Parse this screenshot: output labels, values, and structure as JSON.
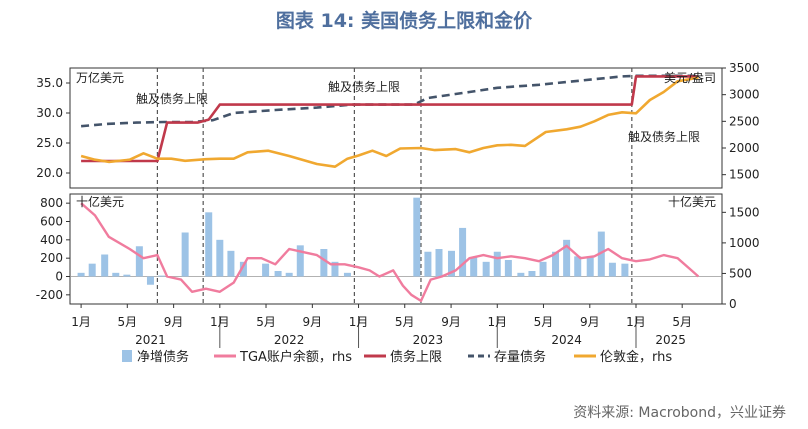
{
  "title": "图表 14: 美国债务上限和金价",
  "source": "资料来源: Macrobond，兴业证券",
  "colors": {
    "bar": "#9dc3e6",
    "tga": "#f07c9e",
    "ceiling": "#c0394b",
    "stock": "#44546a",
    "gold": "#f0a830",
    "grid": "#555555"
  },
  "chart_data": [
    {
      "type": "line",
      "panel": "top",
      "unit_left": "万亿美元",
      "unit_right": "美元/盎司",
      "ylim_left": [
        17.5,
        37.5
      ],
      "yticks_left": [
        "20.0",
        "25.0",
        "30.0",
        "35.0"
      ],
      "ylim_right": [
        1250,
        3500
      ],
      "yticks_right": [
        "1500",
        "2000",
        "2500",
        "3000",
        "3500"
      ],
      "annotations": [
        {
          "text": "触及债务上限",
          "x": 2021.2
        },
        {
          "text": "触及债务上限",
          "x": 2022.85
        },
        {
          "text": "触及债务上限",
          "x": 2024.97
        }
      ],
      "series": [
        {
          "name": "债务上限",
          "axis": "left",
          "x": [
            2021.0,
            2021.55,
            2021.62,
            2021.84,
            2021.92,
            2022.0,
            2024.97,
            2025.0,
            2025.45
          ],
          "y": [
            22.0,
            22.0,
            28.4,
            28.4,
            28.9,
            31.4,
            31.4,
            36.1,
            36.1
          ]
        },
        {
          "name": "存量债务",
          "axis": "left",
          "x": [
            2021.0,
            2021.2,
            2021.4,
            2021.6,
            2021.8,
            2021.95,
            2022.1,
            2022.4,
            2022.7,
            2022.95,
            2023.4,
            2023.5,
            2023.8,
            2024.0,
            2024.3,
            2024.6,
            2024.9,
            2025.0,
            2025.45
          ],
          "y": [
            27.8,
            28.2,
            28.4,
            28.5,
            28.5,
            28.8,
            30.0,
            30.5,
            30.9,
            31.4,
            31.4,
            32.5,
            33.5,
            34.2,
            34.7,
            35.4,
            36.1,
            36.2,
            36.2
          ]
        },
        {
          "name": "伦敦金，rhs",
          "axis": "right",
          "x": [
            2021.0,
            2021.1,
            2021.2,
            2021.35,
            2021.45,
            2021.55,
            2021.65,
            2021.75,
            2021.9,
            2022.0,
            2022.1,
            2022.2,
            2022.35,
            2022.5,
            2022.7,
            2022.83,
            2022.92,
            2023.0,
            2023.1,
            2023.2,
            2023.3,
            2023.45,
            2023.55,
            2023.7,
            2023.8,
            2023.9,
            2024.0,
            2024.1,
            2024.2,
            2024.35,
            2024.5,
            2024.6,
            2024.7,
            2024.8,
            2024.9,
            2025.0,
            2025.1,
            2025.2,
            2025.3,
            2025.45
          ],
          "y": [
            1850,
            1780,
            1740,
            1780,
            1900,
            1800,
            1800,
            1760,
            1790,
            1800,
            1800,
            1920,
            1950,
            1850,
            1700,
            1650,
            1800,
            1860,
            1950,
            1850,
            1990,
            2000,
            1960,
            1980,
            1920,
            2000,
            2050,
            2060,
            2040,
            2300,
            2350,
            2400,
            2500,
            2620,
            2670,
            2650,
            2900,
            3050,
            3250,
            3320
          ]
        }
      ]
    },
    {
      "type": "bar",
      "panel": "bottom",
      "unit_left": "十亿美元",
      "unit_right": "十亿美元",
      "ylim_left": [
        -300,
        900
      ],
      "yticks_left": [
        "-200",
        "0",
        "200",
        "400",
        "600",
        "800"
      ],
      "ylim_right": [
        0,
        1800
      ],
      "yticks_right": [
        "0",
        "500",
        "1000",
        "1500"
      ],
      "series": [
        {
          "name": "净增债务",
          "axis": "left",
          "x": [
            2021.0,
            2021.08,
            2021.17,
            2021.25,
            2021.33,
            2021.42,
            2021.5,
            2021.58,
            2021.67,
            2021.75,
            2021.83,
            2021.92,
            2022.0,
            2022.08,
            2022.17,
            2022.25,
            2022.33,
            2022.42,
            2022.5,
            2022.58,
            2022.67,
            2022.75,
            2022.83,
            2022.92,
            2023.0,
            2023.08,
            2023.17,
            2023.25,
            2023.33,
            2023.42,
            2023.5,
            2023.58,
            2023.67,
            2023.75,
            2023.83,
            2023.92,
            2024.0,
            2024.08,
            2024.17,
            2024.25,
            2024.33,
            2024.42,
            2024.5,
            2024.58,
            2024.67,
            2024.75,
            2024.83,
            2024.92,
            2025.0,
            2025.08,
            2025.17,
            2025.25,
            2025.33,
            2025.42
          ],
          "y": [
            40,
            140,
            240,
            40,
            20,
            330,
            -90,
            10,
            0,
            480,
            0,
            700,
            400,
            280,
            160,
            0,
            140,
            60,
            40,
            340,
            0,
            300,
            160,
            40,
            0,
            0,
            0,
            0,
            0,
            860,
            270,
            300,
            280,
            530,
            210,
            160,
            270,
            180,
            40,
            60,
            160,
            270,
            400,
            220,
            220,
            490,
            150,
            140,
            0,
            0,
            0,
            0,
            0,
            0
          ]
        },
        {
          "name": "TGA账户余额，rhs",
          "axis": "right",
          "x": [
            2021.0,
            2021.1,
            2021.2,
            2021.35,
            2021.45,
            2021.55,
            2021.62,
            2021.72,
            2021.8,
            2021.9,
            2022.0,
            2022.1,
            2022.2,
            2022.3,
            2022.4,
            2022.5,
            2022.6,
            2022.7,
            2022.8,
            2022.9,
            2023.0,
            2023.08,
            2023.15,
            2023.25,
            2023.32,
            2023.38,
            2023.45,
            2023.52,
            2023.6,
            2023.7,
            2023.8,
            2023.9,
            2024.0,
            2024.1,
            2024.2,
            2024.3,
            2024.4,
            2024.5,
            2024.6,
            2024.7,
            2024.8,
            2024.9,
            2025.0,
            2025.1,
            2025.2,
            2025.3,
            2025.4,
            2025.45
          ],
          "y": [
            1650,
            1450,
            1100,
            900,
            750,
            800,
            450,
            400,
            200,
            250,
            200,
            350,
            750,
            750,
            650,
            900,
            850,
            800,
            650,
            650,
            600,
            550,
            450,
            550,
            300,
            150,
            50,
            400,
            450,
            550,
            750,
            800,
            750,
            780,
            750,
            700,
            800,
            950,
            750,
            780,
            900,
            750,
            700,
            730,
            800,
            750,
            550,
            450
          ]
        }
      ]
    },
    {
      "type": "axis",
      "month_labels": [
        "1月",
        "5月",
        "9月",
        "1月",
        "5月",
        "9月",
        "1月",
        "5月",
        "9月",
        "1月",
        "5月",
        "9月",
        "1月",
        "5月"
      ],
      "month_x": [
        2021.0,
        2021.333,
        2021.667,
        2022.0,
        2022.333,
        2022.667,
        2023.0,
        2023.333,
        2023.667,
        2024.0,
        2024.333,
        2024.667,
        2025.0,
        2025.333
      ],
      "year_labels": [
        "2021",
        "2022",
        "2023",
        "2024",
        "2025"
      ],
      "year_x": [
        2021.5,
        2022.5,
        2023.5,
        2024.5,
        2025.25
      ],
      "event_lines": [
        2021.55,
        2021.88,
        2022.97,
        2023.45,
        2024.97
      ],
      "legend": [
        "净增债务",
        "TGA账户余额，rhs",
        "债务上限",
        "存量债务",
        "伦敦金，rhs"
      ]
    }
  ]
}
